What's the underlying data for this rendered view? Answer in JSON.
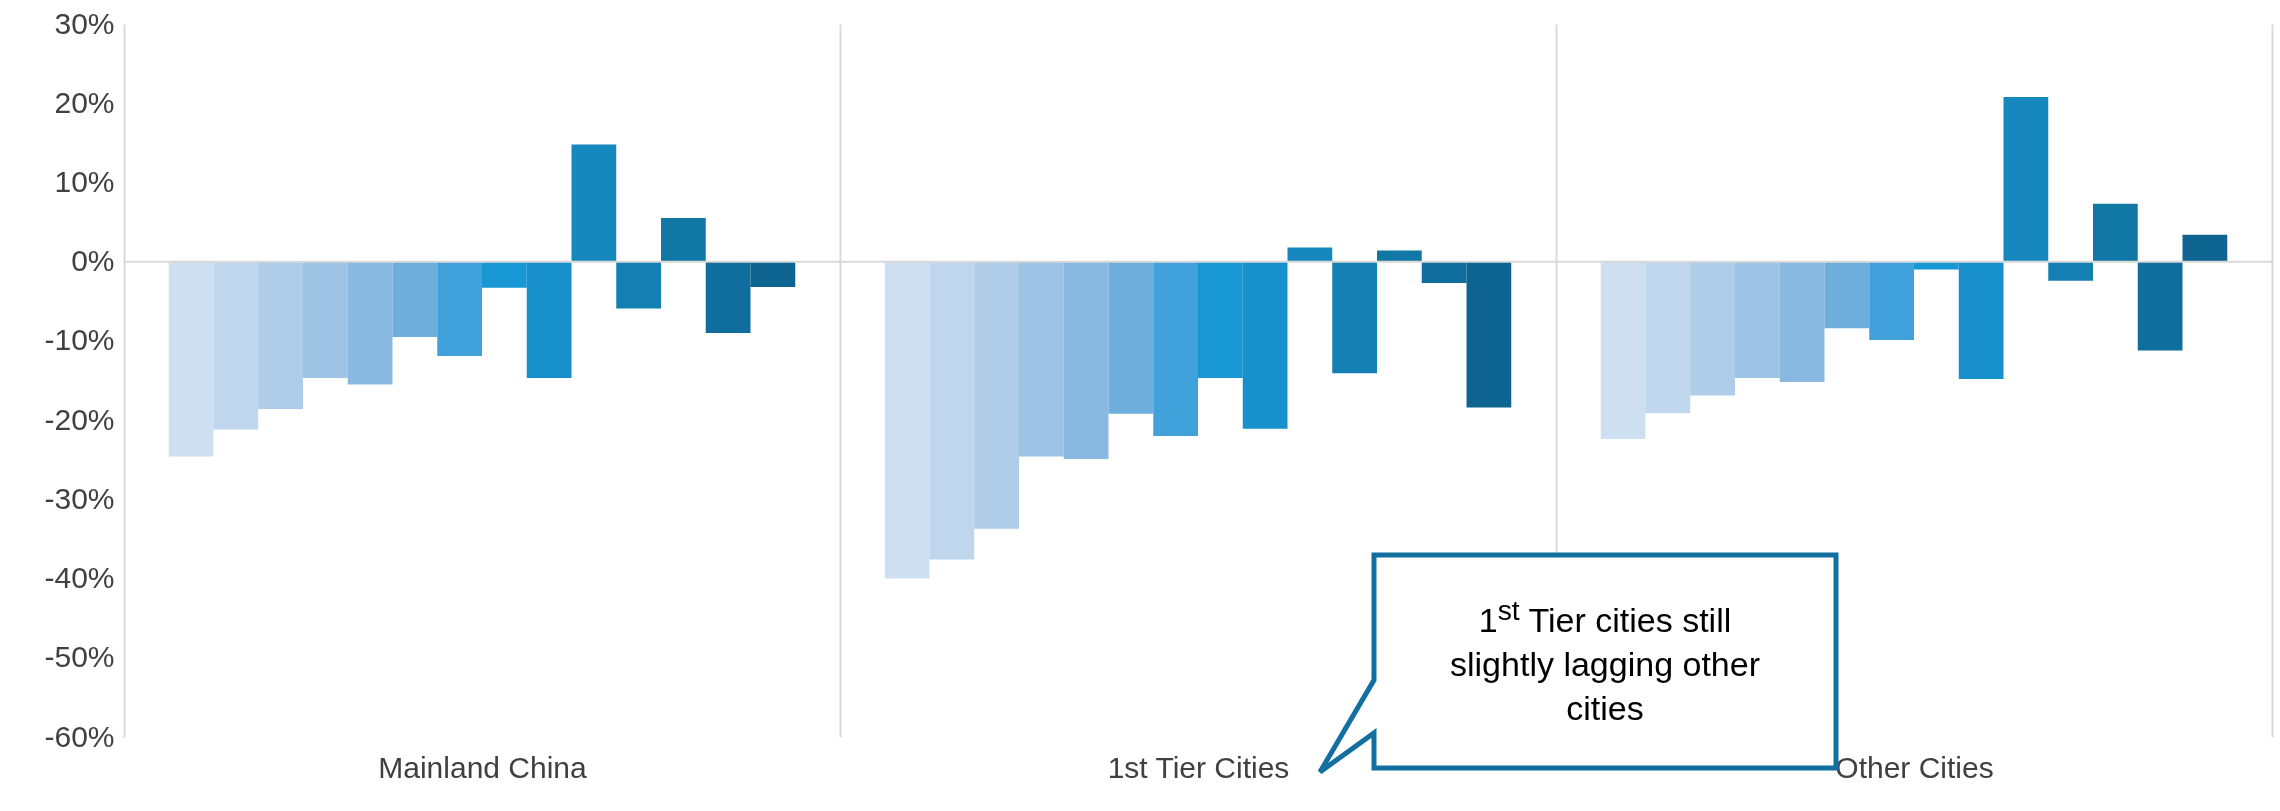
{
  "chart_data": {
    "type": "bar",
    "categories": [
      "Mainland China",
      "1st Tier Cities",
      "Other Cities"
    ],
    "series": [
      {
        "color": "#cddff0",
        "values": [
          -24.6,
          -40.0,
          -22.4
        ]
      },
      {
        "color": "#bfd6ed",
        "values": [
          -21.2,
          -37.6,
          -19.1
        ]
      },
      {
        "color": "#afcde9",
        "values": [
          -18.6,
          -33.7,
          -16.9
        ]
      },
      {
        "color": "#9dc3e5",
        "values": [
          -14.7,
          -24.6,
          -14.7
        ]
      },
      {
        "color": "#89b9e1",
        "values": [
          -15.5,
          -24.9,
          -15.2
        ]
      },
      {
        "color": "#6daedd",
        "values": [
          -9.5,
          -19.2,
          -8.4
        ]
      },
      {
        "color": "#41a1da",
        "values": [
          -11.9,
          -22.0,
          -9.9
        ]
      },
      {
        "color": "#1797d3",
        "values": [
          -3.3,
          -14.7,
          -1.0
        ]
      },
      {
        "color": "#1790cb",
        "values": [
          -14.7,
          -21.1,
          -14.8
        ]
      },
      {
        "color": "#1688be",
        "values": [
          14.8,
          1.8,
          20.8
        ]
      },
      {
        "color": "#137fb3",
        "values": [
          -5.9,
          -14.1,
          -2.4
        ]
      },
      {
        "color": "#1178a6",
        "values": [
          5.5,
          1.4,
          7.3
        ]
      },
      {
        "color": "#0f6e9d",
        "values": [
          -9.0,
          -2.7,
          -11.2
        ]
      },
      {
        "color": "#0d6490",
        "values": [
          -3.2,
          -18.4,
          3.4
        ]
      }
    ],
    "ylim": [
      -60,
      30
    ],
    "yticks": [
      {
        "value": -60,
        "label": "-60%"
      },
      {
        "value": -50,
        "label": "-50%"
      },
      {
        "value": -40,
        "label": "-40%"
      },
      {
        "value": -30,
        "label": "-30%"
      },
      {
        "value": -20,
        "label": "-20%"
      },
      {
        "value": -10,
        "label": "-10%"
      },
      {
        "value": 0,
        "label": "0%"
      },
      {
        "value": 10,
        "label": "10%"
      },
      {
        "value": 20,
        "label": "20%"
      },
      {
        "value": 30,
        "label": "30%"
      }
    ],
    "grid": "x",
    "ref_lines": [
      {
        "axis": "y",
        "value": 0,
        "color": "#d9d9d9"
      }
    ],
    "annotations": [
      "1$^{st}$ Tier cities still slightly lagging other cities"
    ]
  }
}
